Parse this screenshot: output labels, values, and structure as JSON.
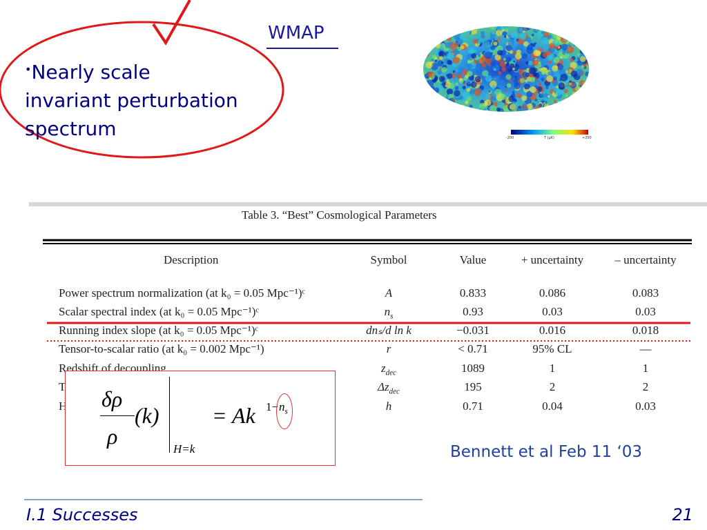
{
  "header": {
    "label": "WMAP"
  },
  "bullet": {
    "lines": [
      "Nearly scale",
      "invariant perturbation",
      "spectrum"
    ]
  },
  "sky_map": {
    "colorbar": {
      "min_label": "-200",
      "unit_label": "T (μK)",
      "max_label": "+200"
    }
  },
  "table": {
    "title": "Table 3.    “Best” Cosmological Parameters",
    "columns": [
      "Description",
      "Symbol",
      "Value",
      "+ uncertainty",
      "– uncertainty"
    ],
    "rows": [
      [
        "Power spectrum normalization (at k₀ = 0.05 Mpc⁻¹)ᶜ",
        {
          "main": "A"
        },
        "0.833",
        "0.086",
        "0.083"
      ],
      [
        "Scalar spectral index (at k₀ = 0.05 Mpc⁻¹)ᶜ",
        {
          "main": "n",
          "sub": "s"
        },
        "0.93",
        "0.03",
        "0.03"
      ],
      [
        "Running index slope (at k₀ = 0.05 Mpc⁻¹)ᶜ",
        {
          "main": "dnₛ/d ln k"
        },
        "−0.031",
        "0.016",
        "0.018"
      ],
      [
        "Tensor-to-scalar ratio (at k₀ = 0.002 Mpc⁻¹)",
        {
          "main": "r"
        },
        "< 0.71",
        "95% CL",
        "—"
      ],
      [
        "Redshift of decoupling",
        {
          "main": "z",
          "sub": "dec"
        },
        "1089",
        "1",
        "1"
      ],
      [
        "T",
        {
          "main": "Δz",
          "sub": "dec"
        },
        "195",
        "2",
        "2"
      ],
      [
        "H",
        {
          "main": "h"
        },
        "0.71",
        "0.04",
        "0.03"
      ]
    ]
  },
  "formula": {
    "numerator": "δρ",
    "denominator": "ρ",
    "argument": "(k)",
    "condition": "H=k",
    "rhs": "= Ak",
    "exponent": "1−",
    "exponent_var": "n",
    "exponent_sub": "s"
  },
  "citation": "Bennett et al Feb 11 ‘03",
  "footer": {
    "section": "I.1 Successes",
    "page": "21"
  }
}
